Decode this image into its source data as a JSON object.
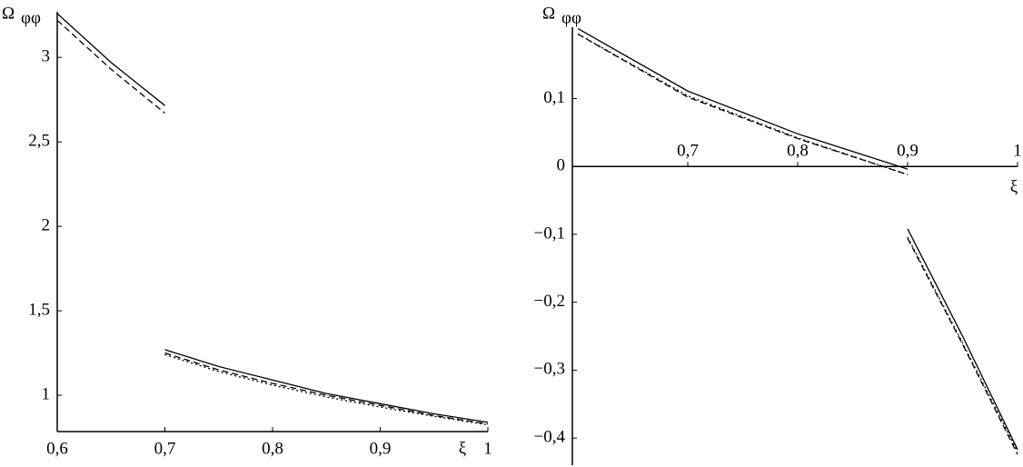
{
  "chart_data": [
    {
      "type": "line",
      "y_label": "Ω",
      "y_label_subscript": "φφ",
      "x_label": "ξ",
      "x_axis_position": "bottom",
      "x": [
        0.6,
        0.65,
        0.7,
        0.7,
        0.7,
        0.75,
        0.8,
        0.85,
        0.9,
        0.95,
        1
      ],
      "series": [
        {
          "color": "#000000",
          "dash": "solid",
          "values": [
            3.26,
            2.97,
            2.715,
            null,
            1.27,
            1.17,
            1.09,
            1.01,
            0.95,
            0.89,
            0.84
          ]
        },
        {
          "color": "#000000",
          "dash": "dashed",
          "values": [
            3.22,
            2.93,
            2.67,
            null,
            1.25,
            1.15,
            1.07,
            1.0,
            0.94,
            0.88,
            0.83
          ]
        },
        {
          "color": "#000000",
          "dash": "dotted",
          "values": [
            null,
            null,
            null,
            null,
            1.24,
            1.14,
            1.06,
            0.99,
            0.93,
            0.875,
            0.825
          ]
        }
      ],
      "xlim": [
        0.6,
        1
      ],
      "xticks": [
        {
          "value": 0.6,
          "label": "0,6"
        },
        {
          "value": 0.7,
          "label": "0,7"
        },
        {
          "value": 0.8,
          "label": "0,8"
        },
        {
          "value": 0.9,
          "label": "0,9"
        },
        1
      ],
      "ylim": [
        0.785,
        3.27
      ],
      "yticks": [
        1,
        {
          "value": 1.5,
          "label": "1,5"
        },
        2,
        {
          "value": 2.5,
          "label": "2,5"
        },
        3
      ]
    },
    {
      "type": "line",
      "y_label": "Ω",
      "y_label_subscript": "φφ",
      "x_label": "ξ",
      "x_axis_position": "zero",
      "x": [
        0.6,
        0.7,
        0.8,
        0.9,
        0.9,
        0.9,
        0.95,
        1
      ],
      "series": [
        {
          "color": "#000000",
          "dash": "solid",
          "values": [
            0.203,
            0.111,
            0.048,
            -0.004,
            null,
            -0.092,
            -0.25,
            -0.417
          ]
        },
        {
          "color": "#000000",
          "dash": "dashed",
          "values": [
            0.195,
            0.102,
            0.041,
            -0.012,
            null,
            -0.106,
            -0.262,
            -0.424
          ]
        },
        {
          "color": "#000000",
          "dash": "dotted",
          "values": [
            0.195,
            0.104,
            0.042,
            -0.012,
            null,
            -0.104,
            -0.26,
            -0.42
          ]
        }
      ],
      "xlim": [
        0.595,
        1
      ],
      "xticks": [
        {
          "value": 0.7,
          "label": "0,7"
        },
        {
          "value": 0.8,
          "label": "0,8"
        },
        {
          "value": 0.9,
          "label": "0,9"
        },
        1
      ],
      "ylim": [
        -0.44,
        0.205
      ],
      "yticks": [
        {
          "value": -0.4,
          "label": "−0,4"
        },
        {
          "value": -0.3,
          "label": "−0,3"
        },
        {
          "value": -0.2,
          "label": "−0,2"
        },
        {
          "value": -0.1,
          "label": "−0,1"
        },
        0,
        {
          "value": 0.1,
          "label": "0,1"
        }
      ]
    }
  ]
}
